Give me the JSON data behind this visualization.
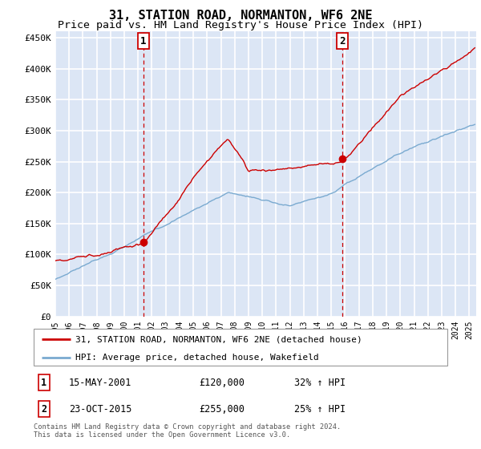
{
  "title": "31, STATION ROAD, NORMANTON, WF6 2NE",
  "subtitle": "Price paid vs. HM Land Registry's House Price Index (HPI)",
  "ylim": [
    0,
    460000
  ],
  "yticks": [
    0,
    50000,
    100000,
    150000,
    200000,
    250000,
    300000,
    350000,
    400000,
    450000
  ],
  "xlim_start": 1995.0,
  "xlim_end": 2025.5,
  "background_color": "#dce6f5",
  "grid_color": "#ffffff",
  "red_line_color": "#cc0000",
  "blue_line_color": "#7aaad0",
  "ann1_x": 2001.37,
  "ann1_y": 120000,
  "ann2_x": 2015.81,
  "ann2_y": 255000,
  "ann1_label": "1",
  "ann2_label": "2",
  "ann1_date": "15-MAY-2001",
  "ann1_price": "£120,000",
  "ann1_hpi": "32% ↑ HPI",
  "ann2_date": "23-OCT-2015",
  "ann2_price": "£255,000",
  "ann2_hpi": "25% ↑ HPI",
  "legend_line1": "31, STATION ROAD, NORMANTON, WF6 2NE (detached house)",
  "legend_line2": "HPI: Average price, detached house, Wakefield",
  "footer": "Contains HM Land Registry data © Crown copyright and database right 2024.\nThis data is licensed under the Open Government Licence v3.0."
}
